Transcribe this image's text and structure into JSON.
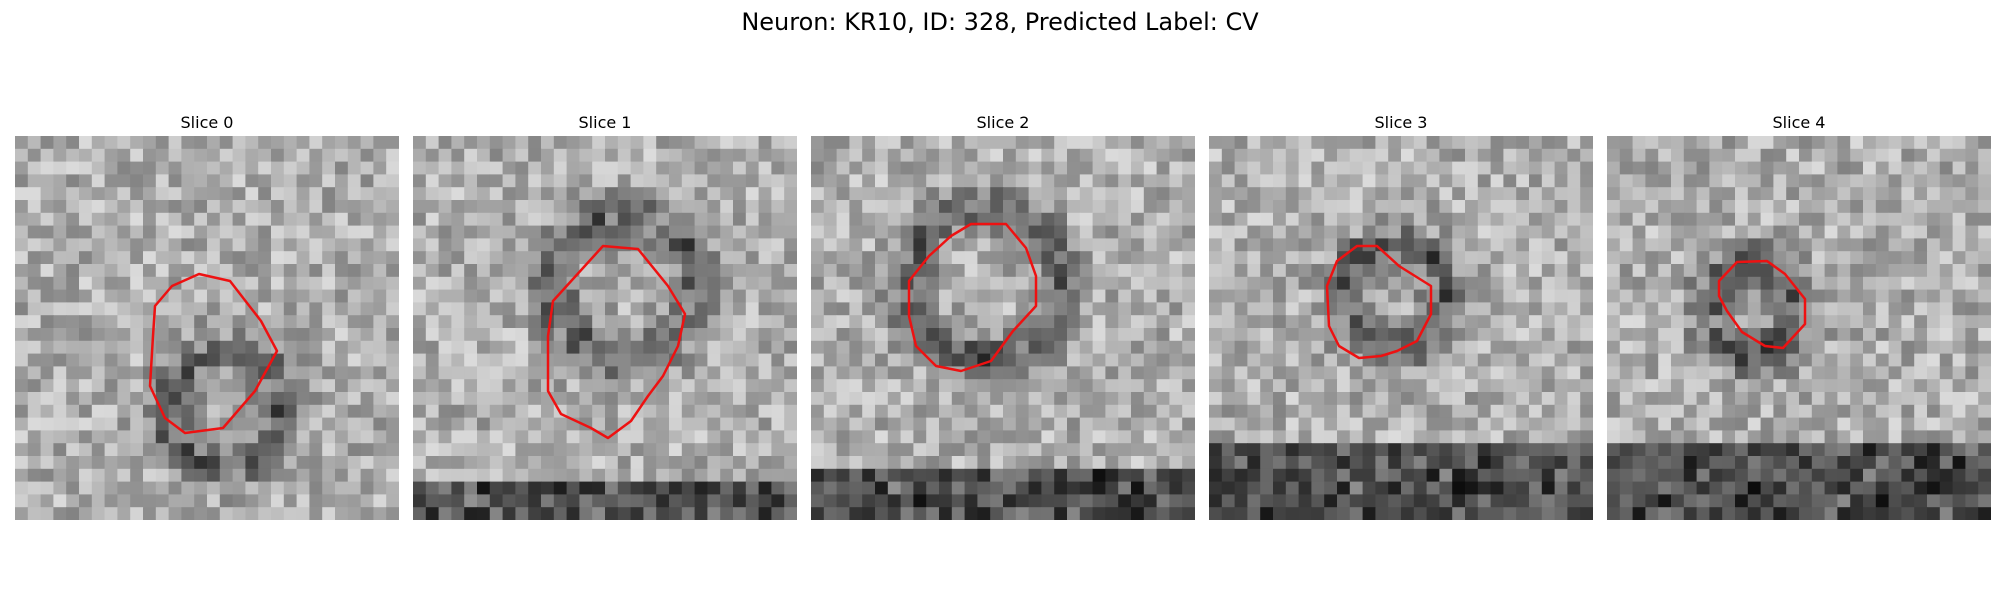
{
  "figure": {
    "title": "Neuron: KR10, ID: 328, Predicted Label: CV",
    "contour_color": "#ee1111",
    "slices": [
      {
        "title": "Slice 0"
      },
      {
        "title": "Slice 1"
      },
      {
        "title": "Slice 2"
      },
      {
        "title": "Slice 3"
      },
      {
        "title": "Slice 4"
      }
    ]
  }
}
